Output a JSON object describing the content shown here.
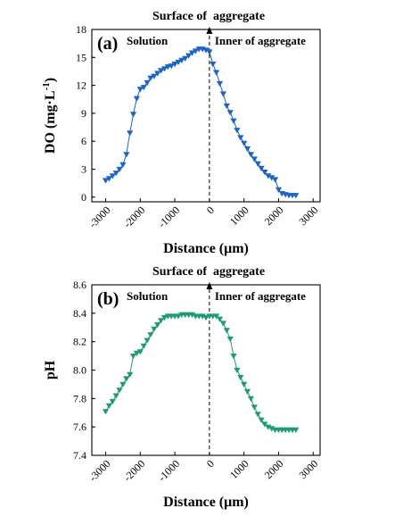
{
  "chart_data": [
    {
      "type": "line",
      "panel_label": "(a)",
      "top_annotation": "Surface of  aggregate",
      "left_annotation": "Solution",
      "right_annotation": "Inner of aggregate",
      "xlabel": "Distance (μm)",
      "ylabel_parts": [
        "DO (mg·L",
        "-1",
        ")"
      ],
      "xlim": [
        -3400,
        3200
      ],
      "ylim": [
        -0.5,
        18
      ],
      "xticks": [
        -3000,
        -2000,
        -1000,
        0,
        1000,
        2000,
        3000
      ],
      "yticks": [
        0,
        3,
        6,
        9,
        12,
        15,
        18
      ],
      "color": "#1a64c8",
      "series": [
        {
          "x": [
            -3000,
            -2900,
            -2800,
            -2700,
            -2600,
            -2500,
            -2400,
            -2300,
            -2200,
            -2100,
            -2000,
            -1900,
            -1800,
            -1700,
            -1600,
            -1500,
            -1400,
            -1300,
            -1200,
            -1100,
            -1000,
            -900,
            -800,
            -700,
            -600,
            -500,
            -400,
            -300,
            -200,
            -100,
            0,
            100,
            200,
            300,
            400,
            500,
            600,
            700,
            800,
            900,
            1000,
            1100,
            1200,
            1300,
            1400,
            1500,
            1600,
            1700,
            1800,
            1900,
            2000,
            2100,
            2200,
            2300,
            2400,
            2500
          ],
          "y": [
            1.8,
            2.0,
            2.3,
            2.6,
            3.0,
            3.5,
            4.6,
            6.9,
            8.9,
            10.6,
            11.6,
            11.8,
            12.3,
            12.8,
            13.0,
            13.3,
            13.6,
            13.8,
            14.0,
            14.1,
            14.3,
            14.5,
            14.7,
            14.9,
            15.2,
            15.5,
            15.7,
            15.9,
            15.9,
            15.8,
            15.6,
            14.3,
            13.4,
            12.2,
            11.1,
            9.8,
            9.1,
            8.2,
            7.2,
            6.4,
            5.8,
            5.2,
            4.6,
            4.1,
            3.6,
            3.1,
            2.7,
            2.3,
            2.1,
            1.9,
            0.8,
            0.4,
            0.3,
            0.2,
            0.2,
            0.2
          ]
        }
      ]
    },
    {
      "type": "line",
      "panel_label": "(b)",
      "top_annotation": "Surface of  aggregate",
      "left_annotation": "Solution",
      "right_annotation": "Inner of aggregate",
      "xlabel": "Distance (μm)",
      "ylabel": "pH",
      "xlim": [
        -3400,
        3200
      ],
      "ylim": [
        7.4,
        8.6
      ],
      "xticks": [
        -3000,
        -2000,
        -1000,
        0,
        1000,
        2000,
        3000
      ],
      "yticks": [
        7.4,
        7.6,
        7.8,
        8.0,
        8.2,
        8.4,
        8.6
      ],
      "color": "#1a9e6e",
      "series": [
        {
          "x": [
            -3000,
            -2900,
            -2800,
            -2700,
            -2600,
            -2500,
            -2400,
            -2300,
            -2200,
            -2100,
            -2000,
            -1900,
            -1800,
            -1700,
            -1600,
            -1500,
            -1400,
            -1300,
            -1200,
            -1100,
            -1000,
            -900,
            -800,
            -700,
            -600,
            -500,
            -400,
            -300,
            -200,
            -100,
            0,
            100,
            200,
            300,
            400,
            500,
            600,
            700,
            800,
            900,
            1000,
            1100,
            1200,
            1300,
            1400,
            1500,
            1600,
            1700,
            1800,
            1900,
            2000,
            2100,
            2200,
            2300,
            2400,
            2500
          ],
          "y": [
            7.71,
            7.75,
            7.78,
            7.82,
            7.86,
            7.9,
            7.94,
            7.97,
            8.1,
            8.12,
            8.13,
            8.17,
            8.21,
            8.25,
            8.29,
            8.32,
            8.35,
            8.37,
            8.38,
            8.38,
            8.38,
            8.38,
            8.39,
            8.39,
            8.39,
            8.39,
            8.38,
            8.38,
            8.38,
            8.37,
            8.38,
            8.38,
            8.38,
            8.36,
            8.33,
            8.28,
            8.22,
            8.1,
            8.0,
            7.95,
            7.9,
            7.85,
            7.8,
            7.74,
            7.69,
            7.65,
            7.62,
            7.6,
            7.59,
            7.58,
            7.58,
            7.58,
            7.58,
            7.58,
            7.58,
            7.58
          ]
        }
      ]
    }
  ]
}
